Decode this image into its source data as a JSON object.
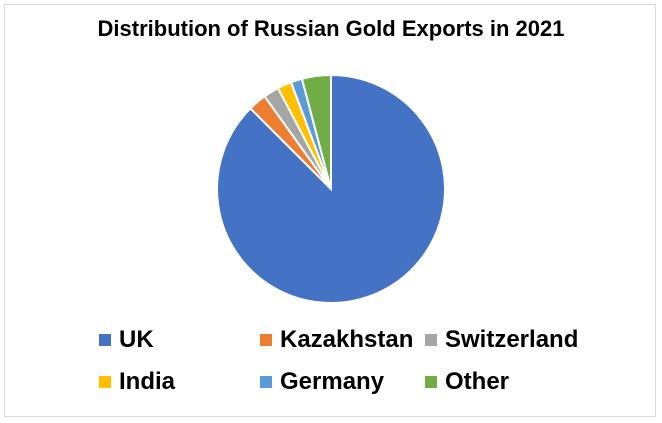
{
  "chart_data": {
    "type": "pie",
    "title": "Distribution of Russian Gold Exports in 2021",
    "categories": [
      "UK",
      "Kazakhstan",
      "Switzerland",
      "India",
      "Germany",
      "Other"
    ],
    "values": [
      87.5,
      2.6,
      2.2,
      2.0,
      1.6,
      4.1
    ],
    "unit": "%",
    "colors": [
      "#4472C4",
      "#ED7D31",
      "#A5A5A5",
      "#FFC000",
      "#5B9BD5",
      "#70AD47"
    ],
    "legend_position": "bottom"
  }
}
